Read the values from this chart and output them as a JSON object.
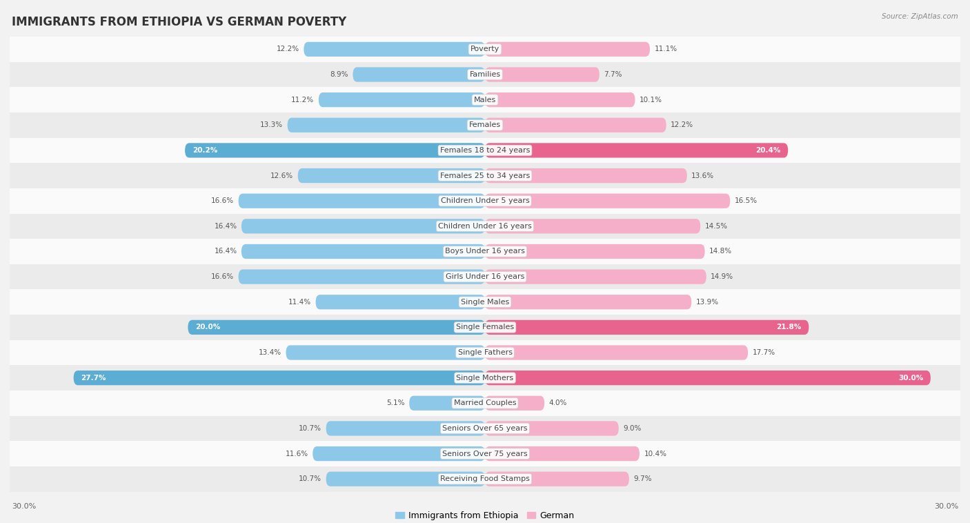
{
  "title": "IMMIGRANTS FROM ETHIOPIA VS GERMAN POVERTY",
  "source": "Source: ZipAtlas.com",
  "categories": [
    "Poverty",
    "Families",
    "Males",
    "Females",
    "Females 18 to 24 years",
    "Females 25 to 34 years",
    "Children Under 5 years",
    "Children Under 16 years",
    "Boys Under 16 years",
    "Girls Under 16 years",
    "Single Males",
    "Single Females",
    "Single Fathers",
    "Single Mothers",
    "Married Couples",
    "Seniors Over 65 years",
    "Seniors Over 75 years",
    "Receiving Food Stamps"
  ],
  "ethiopia_values": [
    12.2,
    8.9,
    11.2,
    13.3,
    20.2,
    12.6,
    16.6,
    16.4,
    16.4,
    16.6,
    11.4,
    20.0,
    13.4,
    27.7,
    5.1,
    10.7,
    11.6,
    10.7
  ],
  "german_values": [
    11.1,
    7.7,
    10.1,
    12.2,
    20.4,
    13.6,
    16.5,
    14.5,
    14.8,
    14.9,
    13.9,
    21.8,
    17.7,
    30.0,
    4.0,
    9.0,
    10.4,
    9.7
  ],
  "ethiopia_color": "#8ec8e8",
  "german_color": "#f5afc8",
  "ethiopia_highlight_color": "#5badd4",
  "german_highlight_color": "#e8638e",
  "background_color": "#f2f2f2",
  "row_bg_light": "#fafafa",
  "row_bg_dark": "#ebebeb",
  "title_fontsize": 12,
  "label_fontsize": 8,
  "value_fontsize": 7.5,
  "legend_fontsize": 9,
  "axis_label_bottom": "30.0%",
  "highlight_threshold": 18.5,
  "max_val": 32.0
}
